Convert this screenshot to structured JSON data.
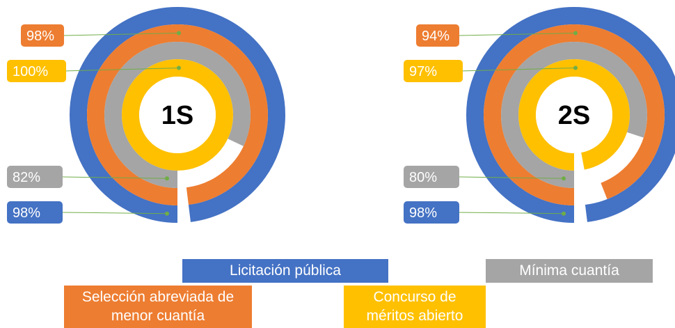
{
  "chart_data": [
    {
      "type": "radial_bar",
      "title": "1S",
      "values": [
        98,
        98,
        82,
        100
      ],
      "value_labels": [
        "98%",
        "98%",
        "82%",
        "100%"
      ]
    },
    {
      "type": "radial_bar",
      "title": "2S",
      "values": [
        98,
        94,
        80,
        97
      ],
      "value_labels": [
        "98%",
        "94%",
        "80%",
        "97%"
      ]
    }
  ],
  "legend": [
    {
      "name": "Licitación pública",
      "color": "#4472c4"
    },
    {
      "name": "Selección abreviada de menor cuantía",
      "color": "#ed7d31"
    },
    {
      "name": "Mínima cuantía",
      "color": "#a5a5a5"
    },
    {
      "name": "Concurso de méritos abierto",
      "color": "#ffc000"
    }
  ]
}
